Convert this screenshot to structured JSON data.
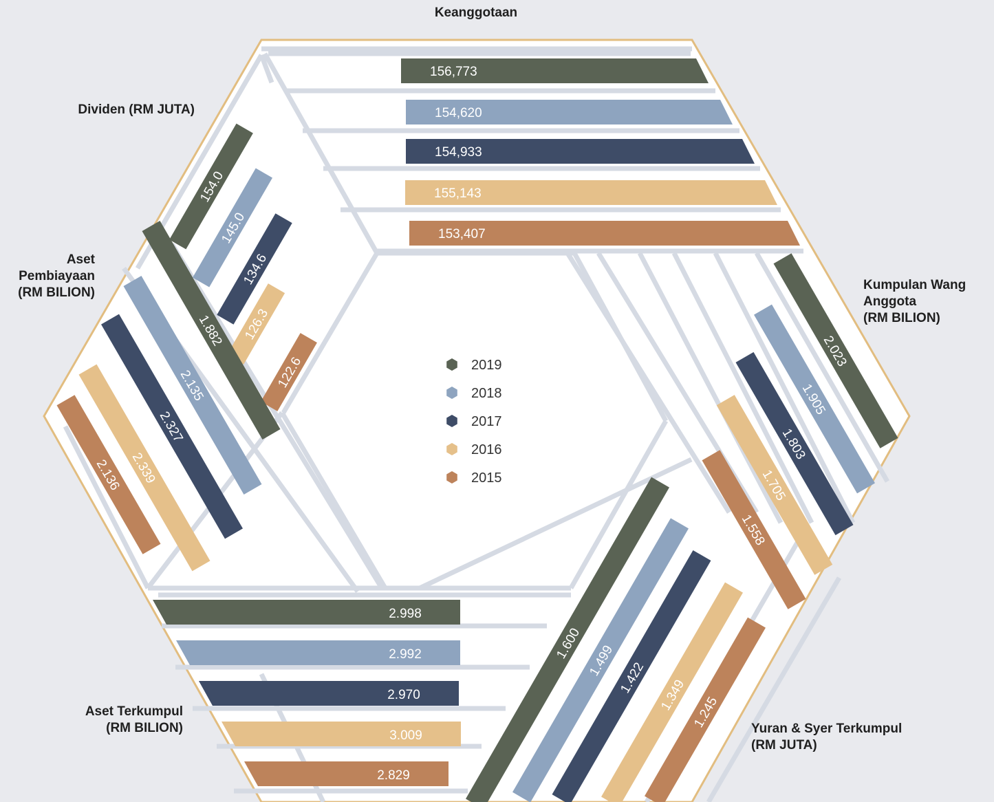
{
  "colors": {
    "background": "#e9eaee",
    "hexagon_fill": "#ffffff",
    "hexagon_border": "#e2bd80",
    "gridline": "#d5dae3",
    "2019": "#5a6354",
    "2018": "#8ea4bf",
    "2017": "#3e4c67",
    "2016": "#e5c08a",
    "2015": "#bd835b"
  },
  "legend": [
    "2019",
    "2018",
    "2017",
    "2016",
    "2015"
  ],
  "chart_data": {
    "type": "bar",
    "layout": "hexagonal radial bar groups",
    "series_years": [
      "2019",
      "2018",
      "2017",
      "2016",
      "2015"
    ],
    "groups": [
      {
        "key": "keanggotaan",
        "title": [
          "Keanggotaan"
        ],
        "values": [
          156773,
          154620,
          154933,
          155143,
          153407
        ],
        "labels": [
          "156,773",
          "154,620",
          "154,933",
          "155,143",
          "153,407"
        ]
      },
      {
        "key": "kumpulan",
        "title": [
          "Kumpulan Wang",
          "Anggota",
          "(RM BILION)"
        ],
        "values": [
          2.023,
          1.905,
          1.803,
          1.705,
          1.558
        ],
        "labels": [
          "2.023",
          "1.905",
          "1.803",
          "1.705",
          "1.558"
        ]
      },
      {
        "key": "yuran",
        "title": [
          "Yuran & Syer Terkumpul",
          "(RM JUTA)"
        ],
        "values": [
          1.6,
          1.499,
          1.422,
          1.349,
          1.245
        ],
        "labels": [
          "1.600",
          "1.499",
          "1.422",
          "1.349",
          "1.245"
        ]
      },
      {
        "key": "aset_terkumpul",
        "title": [
          "Aset Terkumpul",
          "(RM BILION)"
        ],
        "values": [
          2.998,
          2.992,
          2.97,
          3.009,
          2.829
        ],
        "labels": [
          "2.998",
          "2.992",
          "2.970",
          "3.009",
          "2.829"
        ]
      },
      {
        "key": "aset_pembiayaan",
        "title": [
          "Aset",
          "Pembiayaan",
          "(RM BILION)"
        ],
        "values": [
          1.882,
          2.135,
          2.327,
          2.339,
          2.136
        ],
        "labels": [
          "1.882",
          "2.135",
          "2.327",
          "2.339",
          "2.136"
        ]
      },
      {
        "key": "dividen",
        "title": [
          "Dividen (RM JUTA)"
        ],
        "values": [
          154.0,
          145.0,
          134.6,
          126.3,
          122.6
        ],
        "labels": [
          "154.0",
          "145.0",
          "134.6",
          "126.3",
          "122.6"
        ]
      }
    ]
  }
}
